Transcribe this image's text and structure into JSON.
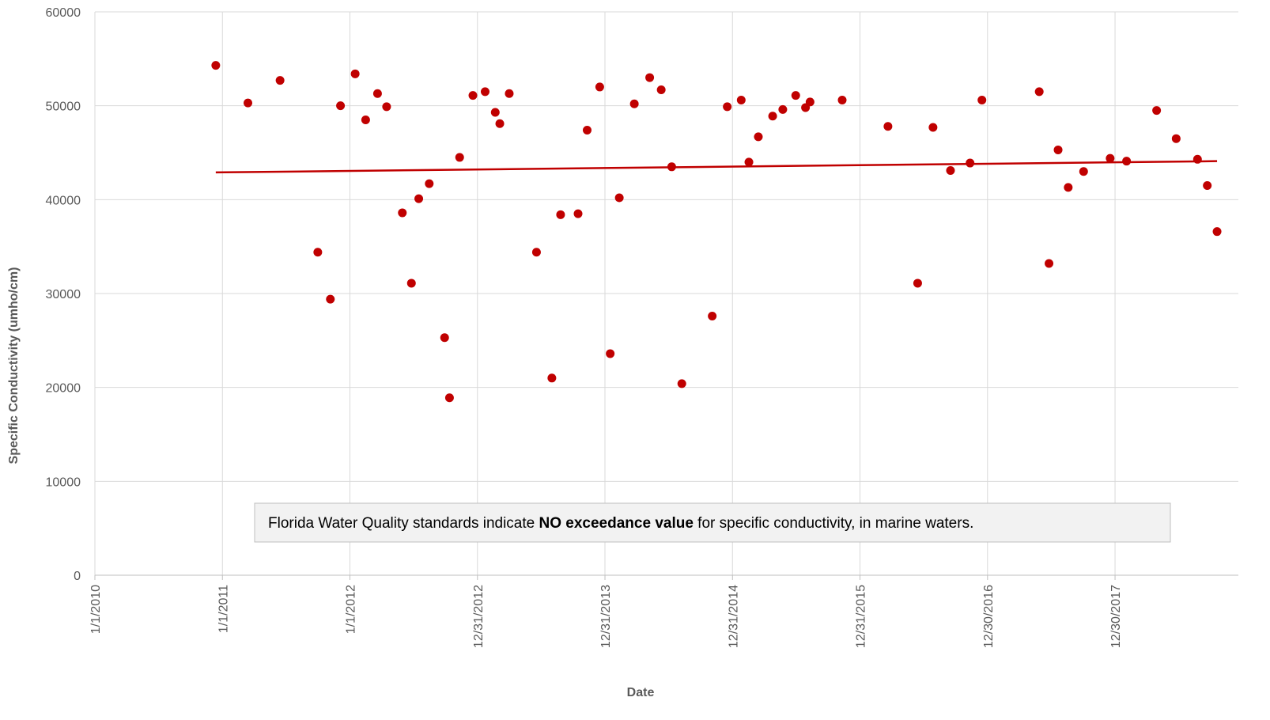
{
  "chart_data": {
    "type": "scatter",
    "x_label": "Date",
    "y_label": "Specific Conductivity (umho/cm)",
    "annotation": [
      "Florida Water Quality standards indicate ",
      "NO exceedance value",
      " for specific conductivity, in marine waters."
    ],
    "xlim": [
      "2010-01-01",
      "2018-12-18"
    ],
    "xticks": [
      {
        "value": "2010-01-01",
        "label": "1/1/2010"
      },
      {
        "value": "2011-01-01",
        "label": "1/1/2011"
      },
      {
        "value": "2012-01-01",
        "label": "1/1/2012"
      },
      {
        "value": "2012-12-31",
        "label": "12/31/2012"
      },
      {
        "value": "2013-12-31",
        "label": "12/31/2013"
      },
      {
        "value": "2014-12-31",
        "label": "12/31/2014"
      },
      {
        "value": "2015-12-31",
        "label": "12/31/2015"
      },
      {
        "value": "2016-12-30",
        "label": "12/30/2016"
      },
      {
        "value": "2017-12-30",
        "label": "12/30/2017"
      }
    ],
    "ylim": [
      0,
      60000
    ],
    "yticks": [
      0,
      10000,
      20000,
      30000,
      40000,
      50000,
      60000
    ],
    "grid": true,
    "series": [
      {
        "color": "#c00000",
        "x": [
          "2010-12-13",
          "2011-03-15",
          "2011-06-15",
          "2011-10-01",
          "2011-11-06",
          "2011-12-05",
          "2012-01-16",
          "2012-02-15",
          "2012-03-20",
          "2012-04-15",
          "2012-05-30",
          "2012-06-25",
          "2012-07-16",
          "2012-08-15",
          "2012-09-28",
          "2012-10-12",
          "2012-11-10",
          "2012-12-18",
          "2013-01-22",
          "2013-02-20",
          "2013-03-05",
          "2013-04-01",
          "2013-06-18",
          "2013-08-01",
          "2013-08-26",
          "2013-10-15",
          "2013-11-10",
          "2013-12-16",
          "2014-01-15",
          "2014-02-10",
          "2014-03-25",
          "2014-05-08",
          "2014-06-10",
          "2014-07-10",
          "2014-08-08",
          "2014-11-03",
          "2014-12-16",
          "2015-01-25",
          "2015-02-16",
          "2015-03-15",
          "2015-04-25",
          "2015-05-24",
          "2015-06-30",
          "2015-07-28",
          "2015-08-10",
          "2015-11-10",
          "2016-03-20",
          "2016-06-13",
          "2016-07-27",
          "2016-09-15",
          "2016-11-10",
          "2016-12-14",
          "2017-05-27",
          "2017-06-24",
          "2017-07-20",
          "2017-08-18",
          "2017-10-01",
          "2017-12-16",
          "2018-02-01",
          "2018-04-28",
          "2018-06-23",
          "2018-08-23",
          "2018-09-20",
          "2018-10-18"
        ],
        "values": [
          54300,
          50300,
          52700,
          34400,
          29400,
          50000,
          53400,
          48500,
          51300,
          49900,
          38600,
          31100,
          40100,
          41700,
          25300,
          18900,
          44500,
          51100,
          51500,
          49300,
          48100,
          51300,
          34400,
          21000,
          38400,
          38500,
          47400,
          52000,
          23600,
          40200,
          50200,
          53000,
          51700,
          43500,
          20400,
          27600,
          49900,
          50600,
          44000,
          46700,
          48900,
          49600,
          51100,
          49800,
          50400,
          50600,
          47800,
          31100,
          47700,
          43100,
          43900,
          50600,
          51500,
          33200,
          45300,
          41300,
          43000,
          44400,
          44100,
          49500,
          46500,
          44300,
          41500,
          36600
        ]
      }
    ],
    "trendline": {
      "color": "#c00000",
      "x": [
        "2010-12-13",
        "2018-10-18"
      ],
      "values": [
        42900,
        44100
      ]
    }
  }
}
